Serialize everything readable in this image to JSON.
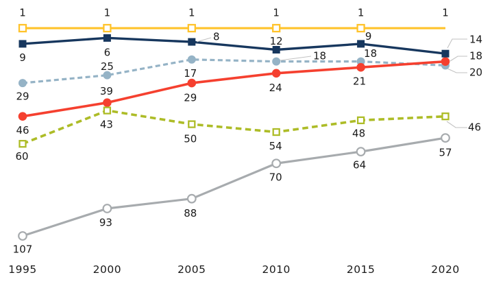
{
  "chart_data": {
    "type": "line",
    "title": "",
    "x_labels": [
      "1995",
      "2000",
      "2005",
      "2010",
      "2015",
      "2020"
    ],
    "y_axis": {
      "visible": false,
      "inverted": true,
      "top_value": 0,
      "bottom_value": 115
    },
    "grid": false,
    "legend": "none",
    "text_color": "#1A1A1A",
    "callout_line_color": "#C2C2C2",
    "background_color": "#FFFFFF",
    "series": [
      {
        "name": "amber-constant",
        "color": "#FFC32B",
        "line_style": "solid",
        "marker": "open-square",
        "values": [
          1,
          1,
          1,
          1,
          1,
          1
        ],
        "point_labels": [
          "1",
          "1",
          "1",
          "1",
          "1",
          "1"
        ],
        "label_placement": [
          "above",
          "above",
          "above",
          "above",
          "above",
          "above"
        ],
        "marker_visible": [
          true,
          true,
          true,
          true,
          true,
          false
        ]
      },
      {
        "name": "navy",
        "color": "#17375E",
        "line_style": "solid",
        "marker": "filled-square",
        "values": [
          9,
          6,
          8,
          12,
          9,
          14
        ],
        "point_labels": [
          "9",
          "6",
          "8",
          "12",
          "9",
          "14"
        ],
        "label_placement": [
          "below",
          "below",
          "callout-right",
          "above",
          "above-right",
          "callout-right"
        ],
        "marker_visible": [
          true,
          true,
          true,
          true,
          true,
          true
        ]
      },
      {
        "name": "steel-blue",
        "color": "#95B3C6",
        "line_style": "dashed",
        "marker": "filled-circle",
        "values": [
          29,
          25,
          17,
          18,
          18,
          20
        ],
        "point_labels": [
          "29",
          "25",
          "17",
          "18",
          "18",
          "20"
        ],
        "label_placement": [
          "below",
          "above",
          "below",
          "callout-right",
          "above-right",
          "callout-right"
        ],
        "marker_visible": [
          true,
          true,
          true,
          true,
          true,
          true
        ]
      },
      {
        "name": "red",
        "color": "#F5402F",
        "line_style": "solid",
        "marker": "filled-circle",
        "values": [
          46,
          39,
          29,
          24,
          21,
          18
        ],
        "point_labels": [
          "46",
          "39",
          "29",
          "24",
          "21",
          "18"
        ],
        "label_placement": [
          "below",
          "above",
          "below",
          "below",
          "below",
          "callout-right"
        ],
        "marker_visible": [
          true,
          true,
          true,
          true,
          true,
          true
        ]
      },
      {
        "name": "olive",
        "color": "#ADBC27",
        "line_style": "dashed",
        "marker": "open-square",
        "values": [
          60,
          43,
          50,
          54,
          48,
          46
        ],
        "point_labels": [
          "60",
          "43",
          "50",
          "54",
          "48",
          "46"
        ],
        "label_placement": [
          "below",
          "below",
          "below",
          "below",
          "below",
          "callout-right"
        ],
        "marker_visible": [
          true,
          true,
          true,
          true,
          true,
          true
        ]
      },
      {
        "name": "gray",
        "color": "#A7ABAE",
        "line_style": "solid",
        "marker": "open-circle",
        "values": [
          107,
          93,
          88,
          70,
          64,
          57
        ],
        "point_labels": [
          "107",
          "93",
          "88",
          "70",
          "64",
          "57"
        ],
        "label_placement": [
          "below",
          "below",
          "below",
          "below",
          "below",
          "below"
        ],
        "marker_visible": [
          true,
          true,
          true,
          true,
          true,
          true
        ]
      }
    ]
  }
}
